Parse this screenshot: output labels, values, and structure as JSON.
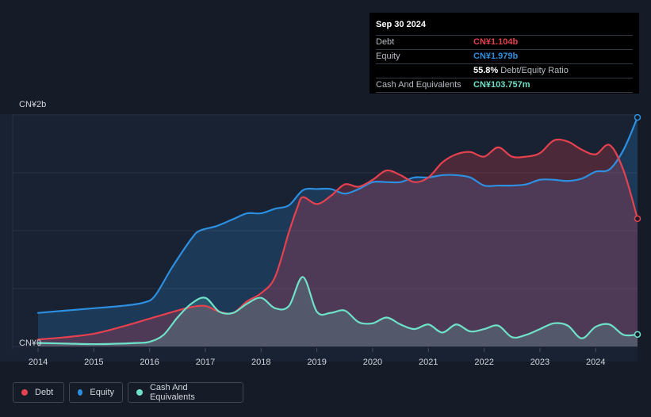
{
  "tooltip": {
    "date": "Sep 30 2024",
    "rows": {
      "debt": {
        "label": "Debt",
        "value": "CN¥1.104b"
      },
      "equity": {
        "label": "Equity",
        "value": "CN¥1.979b"
      },
      "ratio": {
        "value": "55.8%",
        "text": "Debt/Equity Ratio"
      },
      "cash": {
        "label": "Cash And Equivalents",
        "value": "CN¥103.757m"
      }
    }
  },
  "legend": {
    "debt": "Debt",
    "equity": "Equity",
    "cash": "Cash And Equivalents"
  },
  "colors": {
    "debt": "#e5414f",
    "equity": "#2d8fe0",
    "cash": "#6fe1c8",
    "background": "#151b27"
  },
  "chart_data": {
    "type": "area",
    "y_top_label": "CN¥2b",
    "y_zero_label": "CN¥0",
    "ylim": [
      0,
      2.0
    ],
    "xlim": [
      2014.0,
      2024.75
    ],
    "x_ticks": [
      "2014",
      "2015",
      "2016",
      "2017",
      "2018",
      "2019",
      "2020",
      "2021",
      "2022",
      "2023",
      "2024"
    ],
    "series": [
      {
        "name": "Equity",
        "color": "#2d8fe0",
        "points": [
          [
            2014.0,
            0.29
          ],
          [
            2014.5,
            0.31
          ],
          [
            2015.0,
            0.33
          ],
          [
            2015.5,
            0.35
          ],
          [
            2015.9,
            0.38
          ],
          [
            2016.1,
            0.44
          ],
          [
            2016.4,
            0.68
          ],
          [
            2016.75,
            0.93
          ],
          [
            2016.9,
            1.0
          ],
          [
            2017.2,
            1.04
          ],
          [
            2017.5,
            1.1
          ],
          [
            2017.75,
            1.15
          ],
          [
            2018.0,
            1.15
          ],
          [
            2018.25,
            1.19
          ],
          [
            2018.5,
            1.22
          ],
          [
            2018.75,
            1.35
          ],
          [
            2019.0,
            1.36
          ],
          [
            2019.25,
            1.36
          ],
          [
            2019.5,
            1.32
          ],
          [
            2019.75,
            1.36
          ],
          [
            2020.0,
            1.42
          ],
          [
            2020.25,
            1.42
          ],
          [
            2020.5,
            1.42
          ],
          [
            2020.75,
            1.46
          ],
          [
            2021.0,
            1.46
          ],
          [
            2021.25,
            1.48
          ],
          [
            2021.5,
            1.48
          ],
          [
            2021.75,
            1.46
          ],
          [
            2022.0,
            1.39
          ],
          [
            2022.25,
            1.39
          ],
          [
            2022.5,
            1.39
          ],
          [
            2022.75,
            1.4
          ],
          [
            2023.0,
            1.44
          ],
          [
            2023.25,
            1.44
          ],
          [
            2023.5,
            1.43
          ],
          [
            2023.75,
            1.45
          ],
          [
            2024.0,
            1.51
          ],
          [
            2024.25,
            1.53
          ],
          [
            2024.5,
            1.7
          ],
          [
            2024.75,
            1.979
          ]
        ]
      },
      {
        "name": "Debt",
        "color": "#e5414f",
        "points": [
          [
            2014.0,
            0.06
          ],
          [
            2014.5,
            0.08
          ],
          [
            2015.0,
            0.11
          ],
          [
            2015.5,
            0.17
          ],
          [
            2016.0,
            0.24
          ],
          [
            2016.5,
            0.31
          ],
          [
            2016.75,
            0.34
          ],
          [
            2017.0,
            0.35
          ],
          [
            2017.25,
            0.3
          ],
          [
            2017.5,
            0.29
          ],
          [
            2017.75,
            0.39
          ],
          [
            2018.0,
            0.46
          ],
          [
            2018.25,
            0.6
          ],
          [
            2018.5,
            0.99
          ],
          [
            2018.65,
            1.2
          ],
          [
            2018.75,
            1.29
          ],
          [
            2019.0,
            1.23
          ],
          [
            2019.25,
            1.3
          ],
          [
            2019.5,
            1.4
          ],
          [
            2019.75,
            1.38
          ],
          [
            2020.0,
            1.44
          ],
          [
            2020.25,
            1.52
          ],
          [
            2020.5,
            1.48
          ],
          [
            2020.75,
            1.42
          ],
          [
            2021.0,
            1.46
          ],
          [
            2021.25,
            1.59
          ],
          [
            2021.5,
            1.66
          ],
          [
            2021.75,
            1.68
          ],
          [
            2022.0,
            1.64
          ],
          [
            2022.25,
            1.72
          ],
          [
            2022.5,
            1.64
          ],
          [
            2022.75,
            1.64
          ],
          [
            2023.0,
            1.67
          ],
          [
            2023.25,
            1.78
          ],
          [
            2023.5,
            1.77
          ],
          [
            2023.75,
            1.7
          ],
          [
            2024.0,
            1.66
          ],
          [
            2024.25,
            1.74
          ],
          [
            2024.5,
            1.52
          ],
          [
            2024.75,
            1.104
          ]
        ]
      },
      {
        "name": "Cash And Equivalents",
        "color": "#6fe1c8",
        "points": [
          [
            2014.0,
            0.03
          ],
          [
            2014.5,
            0.025
          ],
          [
            2015.0,
            0.02
          ],
          [
            2015.5,
            0.025
          ],
          [
            2015.75,
            0.03
          ],
          [
            2016.0,
            0.04
          ],
          [
            2016.25,
            0.1
          ],
          [
            2016.5,
            0.25
          ],
          [
            2016.75,
            0.37
          ],
          [
            2017.0,
            0.42
          ],
          [
            2017.25,
            0.3
          ],
          [
            2017.5,
            0.29
          ],
          [
            2017.75,
            0.37
          ],
          [
            2018.0,
            0.42
          ],
          [
            2018.25,
            0.33
          ],
          [
            2018.5,
            0.35
          ],
          [
            2018.75,
            0.6
          ],
          [
            2019.0,
            0.3
          ],
          [
            2019.25,
            0.29
          ],
          [
            2019.5,
            0.31
          ],
          [
            2019.75,
            0.21
          ],
          [
            2020.0,
            0.2
          ],
          [
            2020.25,
            0.25
          ],
          [
            2020.5,
            0.19
          ],
          [
            2020.75,
            0.15
          ],
          [
            2021.0,
            0.19
          ],
          [
            2021.25,
            0.12
          ],
          [
            2021.5,
            0.19
          ],
          [
            2021.75,
            0.13
          ],
          [
            2022.0,
            0.15
          ],
          [
            2022.25,
            0.18
          ],
          [
            2022.5,
            0.08
          ],
          [
            2022.75,
            0.1
          ],
          [
            2023.0,
            0.15
          ],
          [
            2023.25,
            0.2
          ],
          [
            2023.5,
            0.18
          ],
          [
            2023.75,
            0.07
          ],
          [
            2024.0,
            0.17
          ],
          [
            2024.25,
            0.19
          ],
          [
            2024.5,
            0.1
          ],
          [
            2024.75,
            0.104
          ]
        ]
      }
    ]
  }
}
